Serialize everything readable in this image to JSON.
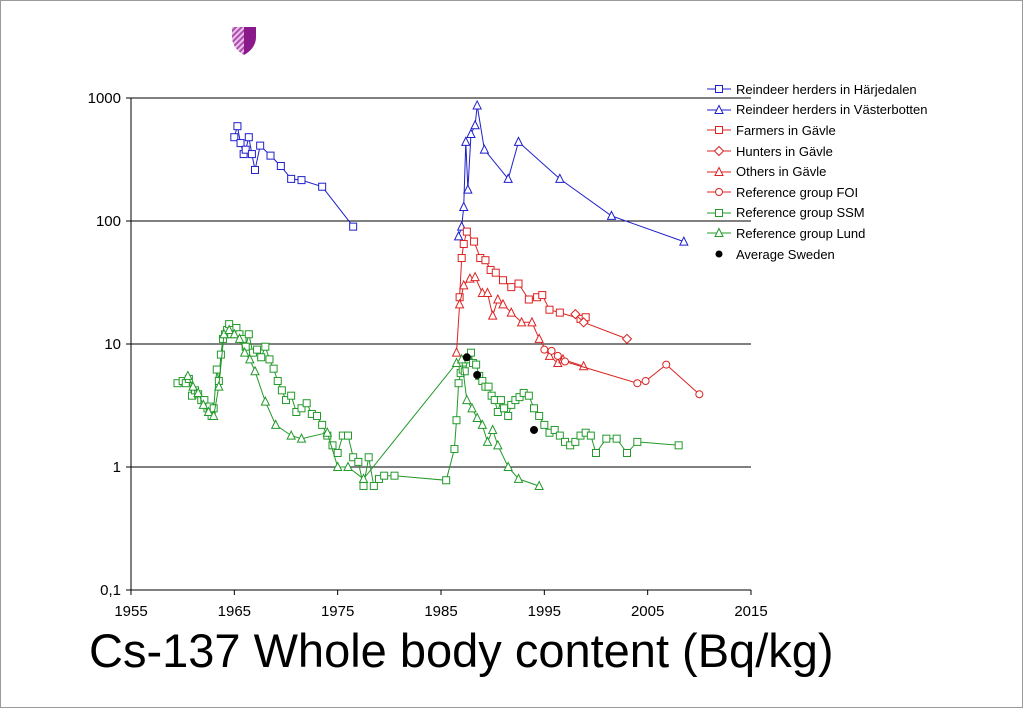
{
  "title": "Cs-137 Whole body content (Bq/kg)",
  "chart_data": {
    "type": "scatter",
    "title": "Cs-137 Whole body content (Bq/kg)",
    "xlabel": "",
    "ylabel": "",
    "xlim": [
      1955,
      2015
    ],
    "ylim": [
      0.1,
      1000
    ],
    "yscale": "log",
    "x_ticks": [
      "1955",
      "1965",
      "1975",
      "1985",
      "1995",
      "2005",
      "2015"
    ],
    "y_ticks": [
      "0,1",
      "1",
      "10",
      "100",
      "1000"
    ],
    "grid": "horizontal",
    "legend_position": "top-right",
    "series": [
      {
        "name": "Reindeer herders in Härjedalen",
        "color": "#1f1fcc",
        "marker": "square",
        "line": true,
        "points": [
          [
            1965.0,
            480
          ],
          [
            1965.3,
            590
          ],
          [
            1965.6,
            430
          ],
          [
            1965.9,
            350
          ],
          [
            1966.1,
            380
          ],
          [
            1966.4,
            480
          ],
          [
            1966.7,
            350
          ],
          [
            1967.0,
            260
          ],
          [
            1967.5,
            410
          ],
          [
            1968.5,
            340
          ],
          [
            1969.5,
            280
          ],
          [
            1970.5,
            220
          ],
          [
            1971.5,
            215
          ],
          [
            1973.5,
            190
          ],
          [
            1976.5,
            90
          ]
        ]
      },
      {
        "name": "Reindeer herders in Västerbotten",
        "color": "#1f1fcc",
        "marker": "triangle",
        "line": true,
        "points": [
          [
            1986.7,
            75
          ],
          [
            1987.0,
            90
          ],
          [
            1987.2,
            130
          ],
          [
            1987.4,
            440
          ],
          [
            1987.6,
            180
          ],
          [
            1987.9,
            510
          ],
          [
            1988.3,
            600
          ],
          [
            1988.5,
            870
          ],
          [
            1989.2,
            380
          ],
          [
            1991.5,
            220
          ],
          [
            1992.5,
            440
          ],
          [
            1996.5,
            220
          ],
          [
            2001.5,
            110
          ],
          [
            2008.5,
            68
          ]
        ]
      },
      {
        "name": "Farmers in Gävle",
        "color": "#dd2222",
        "marker": "square",
        "line": true,
        "points": [
          [
            1986.8,
            24
          ],
          [
            1987.0,
            50
          ],
          [
            1987.2,
            65
          ],
          [
            1987.5,
            82
          ],
          [
            1988.2,
            68
          ],
          [
            1988.8,
            50
          ],
          [
            1989.3,
            48
          ],
          [
            1989.8,
            40
          ],
          [
            1990.3,
            38
          ],
          [
            1991.0,
            33
          ],
          [
            1991.8,
            29
          ],
          [
            1992.5,
            31
          ],
          [
            1993.5,
            23
          ],
          [
            1994.3,
            24
          ],
          [
            1994.8,
            25
          ],
          [
            1995.5,
            19
          ],
          [
            1996.5,
            18
          ],
          [
            1998.5,
            16
          ],
          [
            1999.0,
            16.5
          ]
        ]
      },
      {
        "name": "Hunters in Gävle",
        "color": "#dd2222",
        "marker": "diamond",
        "line": true,
        "points": [
          [
            1998.0,
            17.5
          ],
          [
            1998.8,
            15
          ],
          [
            2003.0,
            11
          ]
        ]
      },
      {
        "name": "Others in Gävle",
        "color": "#dd2222",
        "marker": "triangle",
        "line": true,
        "points": [
          [
            1986.5,
            8.5
          ],
          [
            1986.8,
            21
          ],
          [
            1987.2,
            30
          ],
          [
            1987.8,
            34
          ],
          [
            1988.3,
            35
          ],
          [
            1989.0,
            26
          ],
          [
            1989.5,
            26
          ],
          [
            1990.0,
            17
          ],
          [
            1990.5,
            23
          ],
          [
            1991.0,
            21
          ],
          [
            1991.8,
            18
          ],
          [
            1992.8,
            15
          ],
          [
            1993.8,
            15
          ],
          [
            1994.5,
            11
          ],
          [
            1995.5,
            8
          ],
          [
            1996.3,
            7
          ],
          [
            1996.8,
            7.5
          ],
          [
            1998.8,
            6.6
          ]
        ]
      },
      {
        "name": "Reference group FOI",
        "color": "#dd2222",
        "marker": "circle",
        "line": true,
        "points": [
          [
            1995.0,
            9
          ],
          [
            1995.7,
            8.8
          ],
          [
            1996.3,
            8
          ],
          [
            1997.0,
            7.2
          ],
          [
            2004.0,
            4.8
          ],
          [
            2004.8,
            5
          ],
          [
            2006.8,
            6.8
          ],
          [
            2010.0,
            3.9
          ]
        ]
      },
      {
        "name": "Reference group SSM",
        "color": "#22992a",
        "marker": "square",
        "line": true,
        "points": [
          [
            1959.5,
            4.8
          ],
          [
            1960.0,
            5.0
          ],
          [
            1960.3,
            4.8
          ],
          [
            1960.6,
            5.2
          ],
          [
            1960.9,
            3.8
          ],
          [
            1961.2,
            4.2
          ],
          [
            1961.5,
            3.9
          ],
          [
            1961.8,
            3.5
          ],
          [
            1962.1,
            3.5
          ],
          [
            1962.4,
            3.0
          ],
          [
            1962.6,
            3.1
          ],
          [
            1962.8,
            2.6
          ],
          [
            1963.0,
            3.0
          ],
          [
            1963.3,
            6.2
          ],
          [
            1963.5,
            5.0
          ],
          [
            1963.7,
            8.2
          ],
          [
            1963.9,
            11
          ],
          [
            1964.1,
            12
          ],
          [
            1964.3,
            13
          ],
          [
            1964.5,
            14.5
          ],
          [
            1964.7,
            12
          ],
          [
            1964.9,
            13
          ],
          [
            1965.2,
            13.5
          ],
          [
            1965.5,
            12
          ],
          [
            1965.8,
            11
          ],
          [
            1966.1,
            9.5
          ],
          [
            1966.4,
            12
          ],
          [
            1966.8,
            8.5
          ],
          [
            1967.2,
            9
          ],
          [
            1967.6,
            7.8
          ],
          [
            1968.0,
            9.5
          ],
          [
            1968.4,
            7.5
          ],
          [
            1968.8,
            6.3
          ],
          [
            1969.2,
            5
          ],
          [
            1969.6,
            4.2
          ],
          [
            1970.0,
            3.5
          ],
          [
            1970.5,
            3.8
          ],
          [
            1971.0,
            2.8
          ],
          [
            1971.5,
            3.0
          ],
          [
            1972.0,
            3.3
          ],
          [
            1972.5,
            2.7
          ],
          [
            1973.0,
            2.6
          ],
          [
            1973.5,
            2.2
          ],
          [
            1974.0,
            1.8
          ],
          [
            1974.5,
            1.5
          ],
          [
            1975.0,
            1.3
          ],
          [
            1975.5,
            1.8
          ],
          [
            1976.0,
            1.8
          ],
          [
            1976.5,
            1.2
          ],
          [
            1977.0,
            1.1
          ],
          [
            1977.5,
            0.7
          ],
          [
            1978.0,
            1.2
          ],
          [
            1978.5,
            0.7
          ],
          [
            1979.0,
            0.8
          ],
          [
            1979.5,
            0.85
          ],
          [
            1980.5,
            0.85
          ],
          [
            1985.5,
            0.78
          ],
          [
            1986.3,
            1.4
          ],
          [
            1986.5,
            2.4
          ],
          [
            1986.7,
            4.8
          ],
          [
            1986.9,
            5.8
          ],
          [
            1987.1,
            6.2
          ],
          [
            1987.3,
            6.0
          ],
          [
            1987.6,
            7.5
          ],
          [
            1987.9,
            8.5
          ],
          [
            1988.1,
            7.0
          ],
          [
            1988.4,
            6.8
          ],
          [
            1988.7,
            5.5
          ],
          [
            1989.0,
            5.0
          ],
          [
            1989.3,
            4.5
          ],
          [
            1989.6,
            4.5
          ],
          [
            1989.9,
            3.8
          ],
          [
            1990.2,
            3.5
          ],
          [
            1990.5,
            2.8
          ],
          [
            1990.8,
            3.5
          ],
          [
            1991.1,
            3.0
          ],
          [
            1991.5,
            2.6
          ],
          [
            1991.8,
            3.2
          ],
          [
            1992.2,
            3.5
          ],
          [
            1992.6,
            3.7
          ],
          [
            1993.0,
            4.0
          ],
          [
            1993.5,
            3.8
          ],
          [
            1994.0,
            3.0
          ],
          [
            1994.5,
            2.6
          ],
          [
            1995.0,
            2.2
          ],
          [
            1995.5,
            1.9
          ],
          [
            1996.0,
            2.0
          ],
          [
            1996.5,
            1.8
          ],
          [
            1997.0,
            1.6
          ],
          [
            1997.5,
            1.5
          ],
          [
            1998.0,
            1.6
          ],
          [
            1998.5,
            1.8
          ],
          [
            1999.0,
            1.9
          ],
          [
            1999.5,
            1.8
          ],
          [
            2000.0,
            1.3
          ],
          [
            2001.0,
            1.7
          ],
          [
            2002.0,
            1.7
          ],
          [
            2003.0,
            1.3
          ],
          [
            2004.0,
            1.6
          ],
          [
            2008.0,
            1.5
          ]
        ]
      },
      {
        "name": "Reference group Lund",
        "color": "#22992a",
        "marker": "triangle",
        "line": true,
        "points": [
          [
            1960.5,
            5.5
          ],
          [
            1961.0,
            4.5
          ],
          [
            1961.5,
            4.0
          ],
          [
            1962.0,
            3.2
          ],
          [
            1962.5,
            2.8
          ],
          [
            1963.0,
            2.6
          ],
          [
            1963.5,
            4.5
          ],
          [
            1964.0,
            12
          ],
          [
            1964.5,
            13
          ],
          [
            1965.0,
            12
          ],
          [
            1965.5,
            11
          ],
          [
            1966.0,
            8.5
          ],
          [
            1966.5,
            7.5
          ],
          [
            1967.0,
            6.0
          ],
          [
            1968.0,
            3.4
          ],
          [
            1969.0,
            2.2
          ],
          [
            1970.5,
            1.8
          ],
          [
            1971.5,
            1.7
          ],
          [
            1974.0,
            1.9
          ],
          [
            1975.0,
            1.0
          ],
          [
            1976.0,
            1.0
          ],
          [
            1977.5,
            0.8
          ],
          [
            1986.5,
            7.0
          ],
          [
            1987.0,
            7.5
          ],
          [
            1987.5,
            3.5
          ],
          [
            1988.0,
            3.0
          ],
          [
            1988.5,
            2.5
          ],
          [
            1989.0,
            2.2
          ],
          [
            1989.5,
            1.6
          ],
          [
            1990.0,
            2.0
          ],
          [
            1990.5,
            1.5
          ],
          [
            1991.5,
            1.0
          ],
          [
            1992.5,
            0.8
          ],
          [
            1994.5,
            0.7
          ]
        ]
      },
      {
        "name": "Average Sweden",
        "color": "#000000",
        "marker": "dot",
        "line": false,
        "points": [
          [
            1987.5,
            7.8
          ],
          [
            1988.5,
            5.6
          ],
          [
            1994.0,
            2.0
          ]
        ]
      }
    ]
  }
}
